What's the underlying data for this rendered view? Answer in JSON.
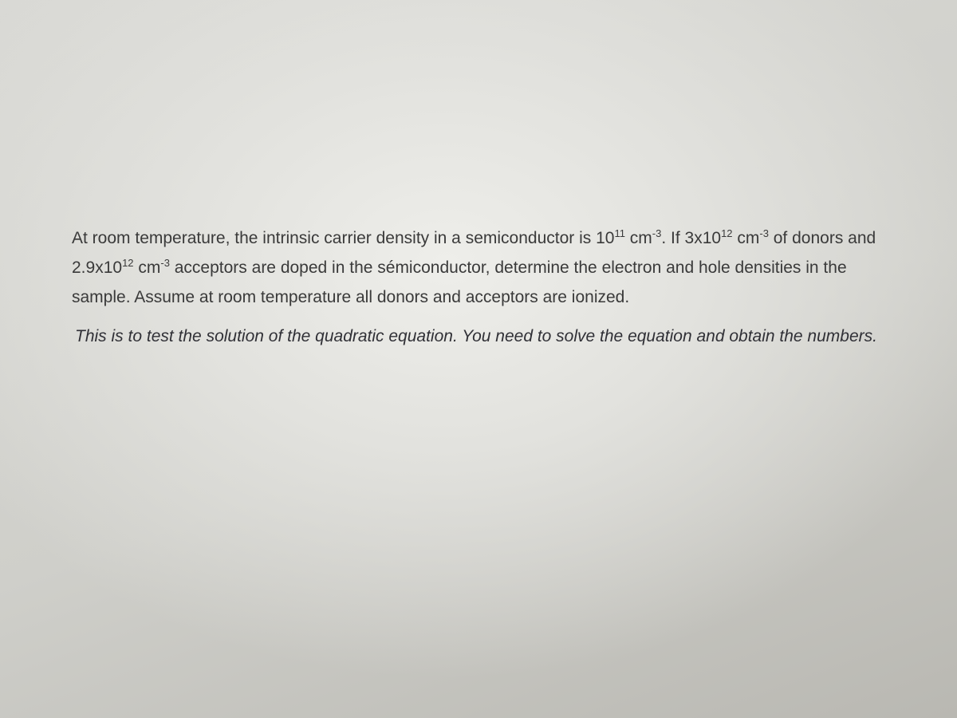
{
  "paragraphs": [
    {
      "runs": [
        {
          "text": "At room temperature, the intrinsic carrier density in a semiconductor is 10"
        },
        {
          "sup": "11"
        },
        {
          "text": " cm"
        },
        {
          "sup": "-3"
        },
        {
          "text": ". If 3x10"
        },
        {
          "sup": "12"
        },
        {
          "text": " cm"
        },
        {
          "sup": "-3"
        },
        {
          "text": " of donors and 2.9x10"
        },
        {
          "sup": "12"
        },
        {
          "text": " cm"
        },
        {
          "sup": "-3"
        },
        {
          "text": " acceptors are doped in the sémiconductor, determine the electron and hole densities in the sample. Assume at room temperature all donors and acceptors are ionized."
        }
      ]
    },
    {
      "runs": [
        {
          "text": "This is to test the solution of the quadratic equation. You need to solve the equation and obtain the numbers."
        }
      ]
    }
  ]
}
